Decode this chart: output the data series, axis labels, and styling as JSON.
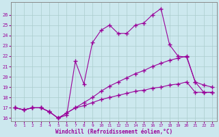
{
  "xlabel": "Windchill (Refroidissement éolien,°C)",
  "xlim": [
    -0.5,
    23.5
  ],
  "ylim": [
    15.7,
    27.2
  ],
  "yticks": [
    16,
    17,
    18,
    19,
    20,
    21,
    22,
    23,
    24,
    25,
    26
  ],
  "xticks": [
    0,
    1,
    2,
    3,
    4,
    5,
    6,
    7,
    8,
    9,
    10,
    11,
    12,
    13,
    14,
    15,
    16,
    17,
    18,
    19,
    20,
    21,
    22,
    23
  ],
  "bg_color": "#cce8ee",
  "grid_color": "#aacccc",
  "line_color": "#990099",
  "line1_x": [
    0,
    1,
    2,
    3,
    4,
    5,
    6,
    7,
    8,
    9,
    10,
    11,
    12,
    13,
    14,
    15,
    16,
    17,
    18,
    19,
    20,
    21,
    22,
    23
  ],
  "line1_y": [
    17.0,
    16.8,
    17.0,
    17.0,
    16.6,
    16.0,
    16.3,
    21.5,
    19.3,
    23.3,
    24.5,
    25.0,
    24.2,
    24.2,
    25.0,
    25.2,
    26.0,
    26.6,
    23.1,
    22.0,
    21.9,
    19.5,
    18.5,
    18.5
  ],
  "line2_x": [
    0,
    1,
    2,
    3,
    4,
    5,
    6,
    7,
    8,
    9,
    10,
    11,
    12,
    13,
    14,
    15,
    16,
    17,
    18,
    19,
    20,
    21,
    22,
    23
  ],
  "line2_y": [
    17.0,
    16.8,
    17.0,
    17.0,
    16.6,
    16.0,
    16.5,
    17.0,
    17.5,
    18.0,
    18.6,
    19.1,
    19.5,
    19.9,
    20.3,
    20.6,
    21.0,
    21.3,
    21.6,
    21.8,
    22.0,
    19.5,
    19.2,
    19.0
  ],
  "line3_x": [
    0,
    1,
    2,
    3,
    4,
    5,
    6,
    7,
    8,
    9,
    10,
    11,
    12,
    13,
    14,
    15,
    16,
    17,
    18,
    19,
    20,
    21,
    22,
    23
  ],
  "line3_y": [
    17.0,
    16.8,
    17.0,
    17.0,
    16.6,
    16.0,
    16.5,
    17.0,
    17.2,
    17.5,
    17.8,
    18.0,
    18.2,
    18.4,
    18.6,
    18.7,
    18.9,
    19.0,
    19.2,
    19.3,
    19.5,
    18.5,
    18.5,
    18.5
  ]
}
